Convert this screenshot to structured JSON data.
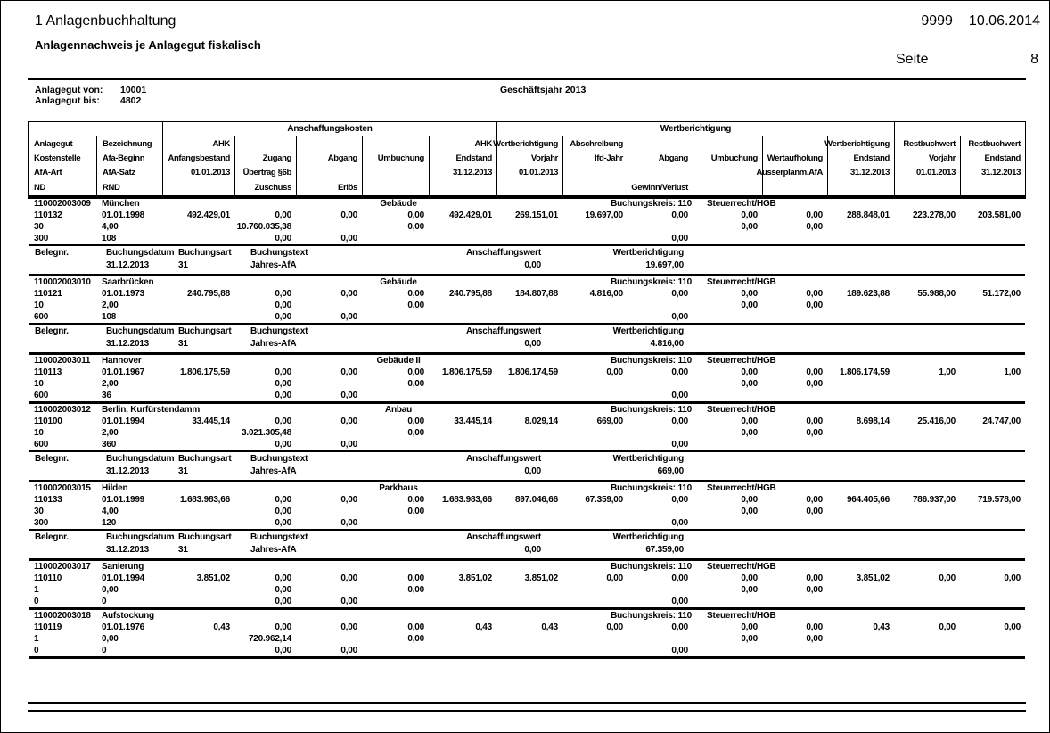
{
  "colors": {
    "text": "#000000",
    "background": "#ffffff",
    "rule": "#000000"
  },
  "page": {
    "title": "1 Anlagenbuchhaltung",
    "subtitle": "Anlagennachweis je Anlagegut fiskalisch",
    "client_number": "9999",
    "date": "10.06.2014",
    "page_label": "Seite",
    "page_number": "8",
    "filter": {
      "von_label": "Anlagegut von:",
      "von_value": "10001",
      "bis_label": "Anlagegut bis:",
      "bis_value": "4802",
      "fiscal_year": "Geschäftsjahr 2013"
    }
  },
  "table": {
    "group_headers": [
      "Anschaffungskosten",
      "Wertberichtigung"
    ],
    "columns": [
      {
        "key": "anlagegut",
        "align": "left",
        "lines": [
          "Anlagegut",
          "Kostenstelle",
          "AfA-Art",
          "ND"
        ]
      },
      {
        "key": "bezeichnung",
        "align": "left",
        "lines": [
          "Bezeichnung",
          "Afa-Beginn",
          "AfA-Satz",
          "RND"
        ]
      },
      {
        "key": "ahk-anfangsbestand",
        "align": "right",
        "lines": [
          "AHK",
          "Anfangsbestand",
          "01.01.2013",
          ""
        ]
      },
      {
        "key": "zugang",
        "align": "right",
        "lines": [
          "",
          "Zugang",
          "Übertrag §6b",
          "Zuschuss"
        ]
      },
      {
        "key": "abgang",
        "align": "right",
        "lines": [
          "",
          "Abgang",
          "",
          "Erlös"
        ]
      },
      {
        "key": "umbuchung",
        "align": "right",
        "lines": [
          "",
          "Umbuchung",
          "",
          ""
        ]
      },
      {
        "key": "ahk-endstand",
        "align": "right",
        "lines": [
          "AHK",
          "Endstand",
          "31.12.2013",
          ""
        ]
      },
      {
        "key": "wb-vorjahr",
        "align": "right",
        "lines": [
          "Wertberichtigung",
          "Vorjahr",
          "01.01.2013",
          ""
        ]
      },
      {
        "key": "abschreibung",
        "align": "right",
        "lines": [
          "Abschreibung",
          "lfd-Jahr",
          "",
          ""
        ]
      },
      {
        "key": "wb-abgang",
        "align": "right",
        "lines": [
          "",
          "Abgang",
          "",
          "Gewinn/Verlust"
        ]
      },
      {
        "key": "wb-umbuchung",
        "align": "right",
        "lines": [
          "",
          "Umbuchung",
          "",
          ""
        ]
      },
      {
        "key": "wertaufholung",
        "align": "right",
        "lines": [
          "",
          "Wertaufholung",
          "Ausserplanm.AfA",
          ""
        ]
      },
      {
        "key": "wb-endstand",
        "align": "right",
        "lines": [
          "Wertberichtigung",
          "Endstand",
          "31.12.2013",
          ""
        ]
      },
      {
        "key": "rbw-vorjahr",
        "align": "right",
        "lines": [
          "Restbuchwert",
          "Vorjahr",
          "01.01.2013",
          ""
        ]
      },
      {
        "key": "rbw-endstand",
        "align": "right",
        "lines": [
          "Restbuchwert",
          "Endstand",
          "31.12.2013",
          ""
        ]
      }
    ],
    "beleg_header": [
      "Belegnr.",
      "Buchungsdatum",
      "Buchungsart",
      "Buchungstext",
      "Anschaffungswert",
      "Wertberichtigung"
    ],
    "blocks": [
      {
        "id": "110002003009",
        "name": "München",
        "type": "Gebäude",
        "buchungskreis_label": "Buchungskreis: 110",
        "rechtsnorm": "Steuerrecht/HGB",
        "rows": [
          [
            "110132",
            "01.01.1998",
            "492.429,01",
            "0,00",
            "0,00",
            "0,00",
            "492.429,01",
            "269.151,01",
            "19.697,00",
            "0,00",
            "0,00",
            "0,00",
            "288.848,01",
            "223.278,00",
            "203.581,00"
          ],
          [
            "30",
            "4,00",
            "",
            "10.760.035,38",
            "",
            "0,00",
            "",
            "",
            "",
            "",
            "0,00",
            "0,00",
            "",
            "",
            ""
          ],
          [
            "300",
            "108",
            "",
            "0,00",
            "0,00",
            "",
            "",
            "",
            "",
            "0,00",
            "",
            "",
            "",
            "",
            ""
          ]
        ],
        "beleg": {
          "buchungsdatum": "31.12.2013",
          "buchungsart": "31",
          "buchungstext": "Jahres-AfA",
          "anschaffungswert": "0,00",
          "wertberichtigung": "19.697,00"
        }
      },
      {
        "id": "110002003010",
        "name": "Saarbrücken",
        "type": "Gebäude",
        "buchungskreis_label": "Buchungskreis: 110",
        "rechtsnorm": "Steuerrecht/HGB",
        "rows": [
          [
            "110121",
            "01.01.1973",
            "240.795,88",
            "0,00",
            "0,00",
            "0,00",
            "240.795,88",
            "184.807,88",
            "4.816,00",
            "0,00",
            "0,00",
            "0,00",
            "189.623,88",
            "55.988,00",
            "51.172,00"
          ],
          [
            "10",
            "2,00",
            "",
            "0,00",
            "",
            "0,00",
            "",
            "",
            "",
            "",
            "0,00",
            "0,00",
            "",
            "",
            ""
          ],
          [
            "600",
            "108",
            "",
            "0,00",
            "0,00",
            "",
            "",
            "",
            "",
            "0,00",
            "",
            "",
            "",
            "",
            ""
          ]
        ],
        "beleg": {
          "buchungsdatum": "31.12.2013",
          "buchungsart": "31",
          "buchungstext": "Jahres-AfA",
          "anschaffungswert": "0,00",
          "wertberichtigung": "4.816,00"
        }
      },
      {
        "id": "110002003011",
        "name": "Hannover",
        "type": "Gebäude II",
        "buchungskreis_label": "Buchungskreis: 110",
        "rechtsnorm": "Steuerrecht/HGB",
        "rows": [
          [
            "110113",
            "01.01.1967",
            "1.806.175,59",
            "0,00",
            "0,00",
            "0,00",
            "1.806.175,59",
            "1.806.174,59",
            "0,00",
            "0,00",
            "0,00",
            "0,00",
            "1.806.174,59",
            "1,00",
            "1,00"
          ],
          [
            "10",
            "2,00",
            "",
            "0,00",
            "",
            "0,00",
            "",
            "",
            "",
            "",
            "0,00",
            "0,00",
            "",
            "",
            ""
          ],
          [
            "600",
            "36",
            "",
            "0,00",
            "0,00",
            "",
            "",
            "",
            "",
            "0,00",
            "",
            "",
            "",
            "",
            ""
          ]
        ],
        "beleg": null
      },
      {
        "id": "110002003012",
        "name": "Berlin, Kurfürstendamm",
        "type": "Anbau",
        "buchungskreis_label": "Buchungskreis: 110",
        "rechtsnorm": "Steuerrecht/HGB",
        "rows": [
          [
            "110100",
            "01.01.1994",
            "33.445,14",
            "0,00",
            "0,00",
            "0,00",
            "33.445,14",
            "8.029,14",
            "669,00",
            "0,00",
            "0,00",
            "0,00",
            "8.698,14",
            "25.416,00",
            "24.747,00"
          ],
          [
            "10",
            "2,00",
            "",
            "3.021.305,48",
            "",
            "0,00",
            "",
            "",
            "",
            "",
            "0,00",
            "0,00",
            "",
            "",
            ""
          ],
          [
            "600",
            "360",
            "",
            "0,00",
            "0,00",
            "",
            "",
            "",
            "",
            "0,00",
            "",
            "",
            "",
            "",
            ""
          ]
        ],
        "beleg": {
          "buchungsdatum": "31.12.2013",
          "buchungsart": "31",
          "buchungstext": "Jahres-AfA",
          "anschaffungswert": "0,00",
          "wertberichtigung": "669,00"
        }
      },
      {
        "id": "110002003015",
        "name": "Hilden",
        "type": "Parkhaus",
        "buchungskreis_label": "Buchungskreis: 110",
        "rechtsnorm": "Steuerrecht/HGB",
        "rows": [
          [
            "110133",
            "01.01.1999",
            "1.683.983,66",
            "0,00",
            "0,00",
            "0,00",
            "1.683.983,66",
            "897.046,66",
            "67.359,00",
            "0,00",
            "0,00",
            "0,00",
            "964.405,66",
            "786.937,00",
            "719.578,00"
          ],
          [
            "30",
            "4,00",
            "",
            "0,00",
            "",
            "0,00",
            "",
            "",
            "",
            "",
            "0,00",
            "0,00",
            "",
            "",
            ""
          ],
          [
            "300",
            "120",
            "",
            "0,00",
            "0,00",
            "",
            "",
            "",
            "",
            "0,00",
            "",
            "",
            "",
            "",
            ""
          ]
        ],
        "beleg": {
          "buchungsdatum": "31.12.2013",
          "buchungsart": "31",
          "buchungstext": "Jahres-AfA",
          "anschaffungswert": "0,00",
          "wertberichtigung": "67.359,00"
        }
      },
      {
        "id": "110002003017",
        "name": "Sanierung",
        "type": "",
        "buchungskreis_label": "Buchungskreis: 110",
        "rechtsnorm": "Steuerrecht/HGB",
        "rows": [
          [
            "110110",
            "01.01.1994",
            "3.851,02",
            "0,00",
            "0,00",
            "0,00",
            "3.851,02",
            "3.851,02",
            "0,00",
            "0,00",
            "0,00",
            "0,00",
            "3.851,02",
            "0,00",
            "0,00"
          ],
          [
            "1",
            "0,00",
            "",
            "0,00",
            "",
            "0,00",
            "",
            "",
            "",
            "",
            "0,00",
            "0,00",
            "",
            "",
            ""
          ],
          [
            "0",
            "0",
            "",
            "0,00",
            "0,00",
            "",
            "",
            "",
            "",
            "0,00",
            "",
            "",
            "",
            "",
            ""
          ]
        ],
        "beleg": null
      },
      {
        "id": "110002003018",
        "name": "Aufstockung",
        "type": "",
        "buchungskreis_label": "Buchungskreis: 110",
        "rechtsnorm": "Steuerrecht/HGB",
        "rows": [
          [
            "110119",
            "01.01.1976",
            "0,43",
            "0,00",
            "0,00",
            "0,00",
            "0,43",
            "0,43",
            "0,00",
            "0,00",
            "0,00",
            "0,00",
            "0,43",
            "0,00",
            "0,00"
          ],
          [
            "1",
            "0,00",
            "",
            "720.962,14",
            "",
            "0,00",
            "",
            "",
            "",
            "",
            "0,00",
            "0,00",
            "",
            "",
            ""
          ],
          [
            "0",
            "0",
            "",
            "0,00",
            "0,00",
            "",
            "",
            "",
            "",
            "0,00",
            "",
            "",
            "",
            "",
            ""
          ]
        ],
        "beleg": null
      }
    ]
  }
}
